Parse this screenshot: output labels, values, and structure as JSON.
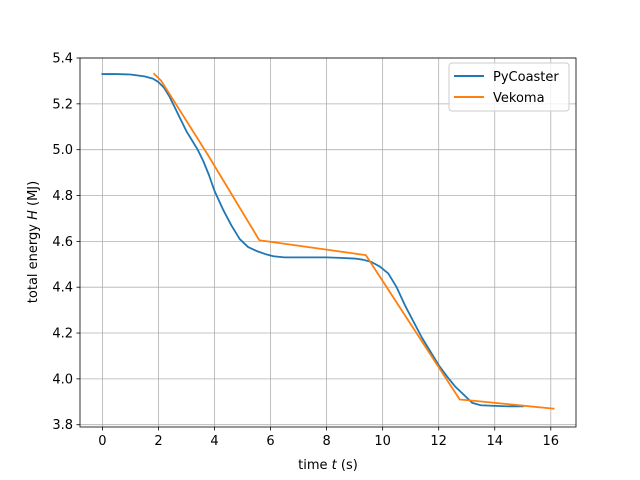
{
  "chart_data": {
    "type": "line",
    "xlabel_prefix": "time ",
    "xlabel_var": "t",
    "xlabel_suffix": " (s)",
    "ylabel_prefix": "total energy ",
    "ylabel_var": "H",
    "ylabel_suffix": " (MJ)",
    "xlim": [
      -0.8,
      16.9
    ],
    "ylim": [
      3.79,
      5.4
    ],
    "xticks": [
      0,
      2,
      4,
      6,
      8,
      10,
      12,
      14,
      16
    ],
    "xtick_labels": [
      "0",
      "2",
      "4",
      "6",
      "8",
      "10",
      "12",
      "14",
      "16"
    ],
    "yticks": [
      3.8,
      4.0,
      4.2,
      4.4,
      4.6,
      4.8,
      5.0,
      5.2,
      5.4
    ],
    "ytick_labels": [
      "3.8",
      "4.0",
      "4.2",
      "4.4",
      "4.6",
      "4.8",
      "5.0",
      "5.2",
      "5.4"
    ],
    "grid": true,
    "legend_position": "top-right",
    "series": [
      {
        "name": "PyCoaster",
        "color": "#1f77b4",
        "x": [
          0,
          0.5,
          1.0,
          1.5,
          1.8,
          2.0,
          2.2,
          2.4,
          2.6,
          2.8,
          3.0,
          3.2,
          3.4,
          3.6,
          3.8,
          4.0,
          4.3,
          4.6,
          4.9,
          5.2,
          5.5,
          5.8,
          6.1,
          6.5,
          7.0,
          7.5,
          8.0,
          8.5,
          9.0,
          9.3,
          9.6,
          9.9,
          10.2,
          10.5,
          10.8,
          11.1,
          11.4,
          11.7,
          12.0,
          12.3,
          12.6,
          12.9,
          13.2,
          13.5,
          14.0,
          14.5,
          15.0
        ],
        "y": [
          5.33,
          5.33,
          5.328,
          5.32,
          5.31,
          5.295,
          5.27,
          5.23,
          5.18,
          5.13,
          5.08,
          5.04,
          5.0,
          4.95,
          4.89,
          4.82,
          4.74,
          4.67,
          4.61,
          4.575,
          4.558,
          4.545,
          4.535,
          4.53,
          4.53,
          4.53,
          4.53,
          4.528,
          4.525,
          4.52,
          4.51,
          4.49,
          4.46,
          4.4,
          4.32,
          4.25,
          4.18,
          4.12,
          4.06,
          4.01,
          3.965,
          3.93,
          3.895,
          3.885,
          3.882,
          3.88,
          3.88
        ]
      },
      {
        "name": "Vekoma",
        "color": "#ff7f0e",
        "x": [
          1.85,
          2.1,
          3.75,
          5.6,
          9.4,
          12.75,
          13.2,
          16.1
        ],
        "y": [
          5.33,
          5.3,
          4.98,
          4.605,
          4.54,
          3.91,
          3.905,
          3.87
        ]
      }
    ]
  }
}
